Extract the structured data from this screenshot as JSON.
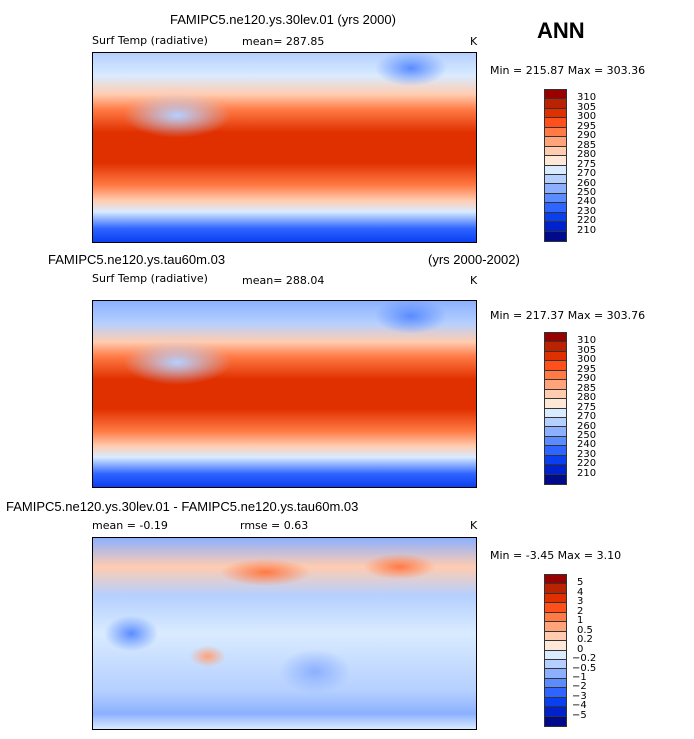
{
  "season": "ANN",
  "colors": [
    "#990000",
    "#bb2200",
    "#e03000",
    "#ff4f1a",
    "#ff7a45",
    "#ffa37a",
    "#ffccb0",
    "#ffe8d8",
    "#d9ebff",
    "#b5d0ff",
    "#8cb0ff",
    "#5a8cff",
    "#2e64ff",
    "#0a3ff0",
    "#0022cc",
    "#000a8c"
  ],
  "panel1": {
    "title": "FAMIPC5.ne120.ys.30lev.01 (yrs 2000)",
    "variable": "Surf Temp (radiative)",
    "mean": "mean= 287.85",
    "units": "K",
    "minmax": "Min = 215.87 Max = 303.36",
    "levels": [
      "310",
      "305",
      "300",
      "295",
      "290",
      "285",
      "280",
      "275",
      "270",
      "260",
      "250",
      "240",
      "230",
      "220",
      "210"
    ]
  },
  "panel2": {
    "title": "FAMIPC5.ne120.ys.tau60m.03",
    "years": "(yrs 2000-2002)",
    "variable": "Surf Temp (radiative)",
    "mean": "mean= 288.04",
    "units": "K",
    "minmax": "Min = 217.37 Max = 303.76",
    "levels": [
      "310",
      "305",
      "300",
      "295",
      "290",
      "285",
      "280",
      "275",
      "270",
      "260",
      "250",
      "240",
      "230",
      "220",
      "210"
    ]
  },
  "panel3": {
    "title": "FAMIPC5.ne120.ys.30lev.01 - FAMIPC5.ne120.ys.tau60m.03",
    "mean": "mean =   -0.19",
    "rmse": "rmse =    0.63",
    "units": "K",
    "minmax": "Min =   -3.45 Max =    3.10",
    "levels": [
      "5",
      "4",
      "3",
      "2",
      "1",
      "0.5",
      "0.2",
      "0",
      "−0.2",
      "−0.5",
      "−1",
      "−2",
      "−3",
      "−4",
      "−5"
    ]
  }
}
